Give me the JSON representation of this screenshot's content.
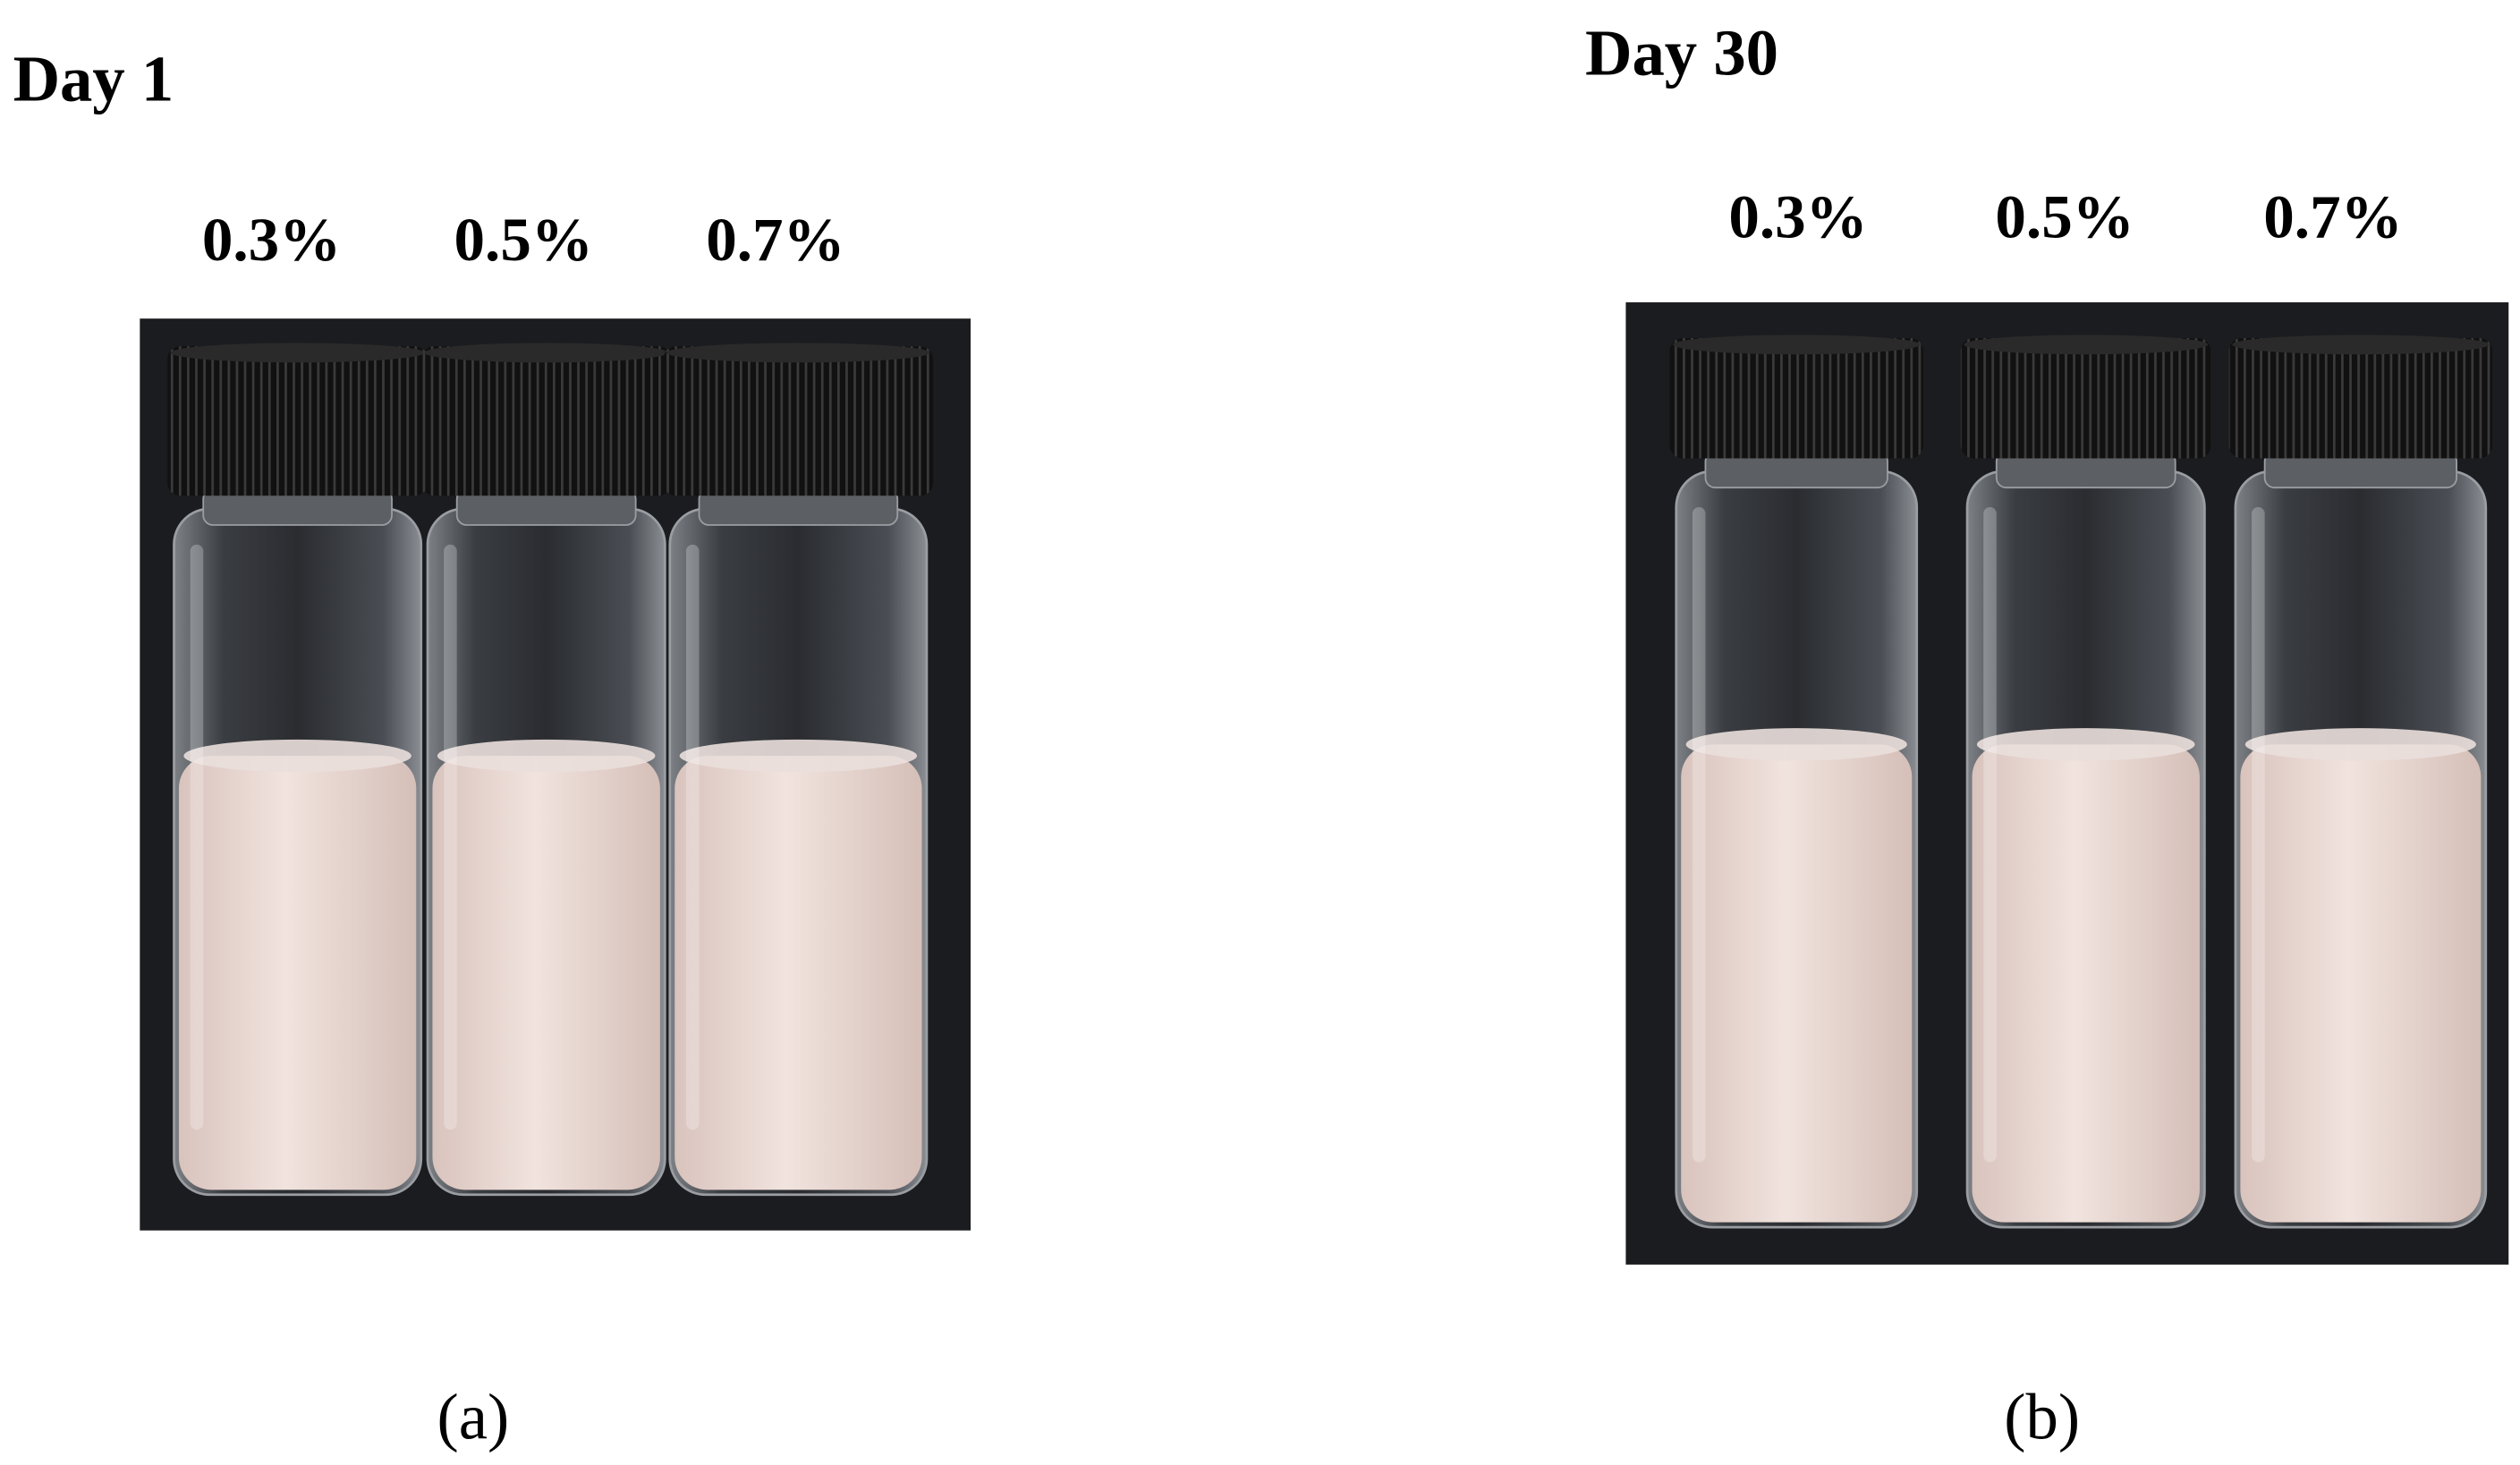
{
  "panels": [
    {
      "title": "Day 1",
      "labels": [
        "0.3%",
        "0.5%",
        "0.7%"
      ],
      "caption": "(a)"
    },
    {
      "title": "Day 30",
      "labels": [
        "0.3%",
        "0.5%",
        "0.7%"
      ],
      "caption": "(b)"
    }
  ]
}
